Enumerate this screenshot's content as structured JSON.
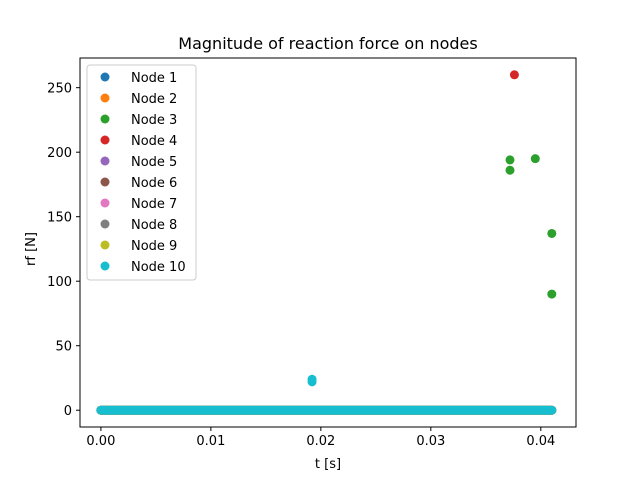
{
  "chart_data": {
    "type": "scatter",
    "title": "Magnitude of reaction force on nodes",
    "xlabel": "t [s]",
    "ylabel": "rf [N]",
    "xlim": [
      -0.0019,
      0.0432
    ],
    "ylim": [
      -13,
      273
    ],
    "xticks": [
      0.0,
      0.01,
      0.02,
      0.03,
      0.04
    ],
    "xtick_labels": [
      "0.00",
      "0.01",
      "0.02",
      "0.03",
      "0.04"
    ],
    "yticks": [
      0,
      50,
      100,
      150,
      200,
      250
    ],
    "ytick_labels": [
      "0",
      "50",
      "100",
      "150",
      "200",
      "250"
    ],
    "grid": false,
    "legend_position": "upper-left",
    "series": [
      {
        "name": "Node 1",
        "color": "#1f77b4",
        "baseline": {
          "x_start": 0.0,
          "x_end": 0.041,
          "y": 0
        },
        "points": []
      },
      {
        "name": "Node 2",
        "color": "#ff7f0e",
        "baseline": {
          "x_start": 0.0,
          "x_end": 0.041,
          "y": 0
        },
        "points": []
      },
      {
        "name": "Node 3",
        "color": "#2ca02c",
        "baseline": {
          "x_start": 0.0,
          "x_end": 0.041,
          "y": 0
        },
        "points": [
          [
            0.0372,
            194
          ],
          [
            0.0372,
            186
          ],
          [
            0.0395,
            195
          ],
          [
            0.041,
            137
          ],
          [
            0.041,
            90
          ]
        ]
      },
      {
        "name": "Node 4",
        "color": "#d62728",
        "baseline": {
          "x_start": 0.0,
          "x_end": 0.041,
          "y": 0
        },
        "points": [
          [
            0.0376,
            260
          ]
        ]
      },
      {
        "name": "Node 5",
        "color": "#9467bd",
        "baseline": {
          "x_start": 0.0,
          "x_end": 0.041,
          "y": 0
        },
        "points": []
      },
      {
        "name": "Node 6",
        "color": "#8c564b",
        "baseline": {
          "x_start": 0.0,
          "x_end": 0.041,
          "y": 0
        },
        "points": []
      },
      {
        "name": "Node 7",
        "color": "#e377c2",
        "baseline": {
          "x_start": 0.0,
          "x_end": 0.041,
          "y": 0
        },
        "points": []
      },
      {
        "name": "Node 8",
        "color": "#7f7f7f",
        "baseline": {
          "x_start": 0.0,
          "x_end": 0.041,
          "y": 0
        },
        "points": []
      },
      {
        "name": "Node 9",
        "color": "#bcbd22",
        "baseline": {
          "x_start": 0.0,
          "x_end": 0.041,
          "y": 0
        },
        "points": []
      },
      {
        "name": "Node 10",
        "color": "#17becf",
        "baseline": {
          "x_start": 0.0,
          "x_end": 0.041,
          "y": 0
        },
        "points": [
          [
            0.0192,
            24
          ],
          [
            0.0192,
            22
          ]
        ]
      }
    ]
  }
}
